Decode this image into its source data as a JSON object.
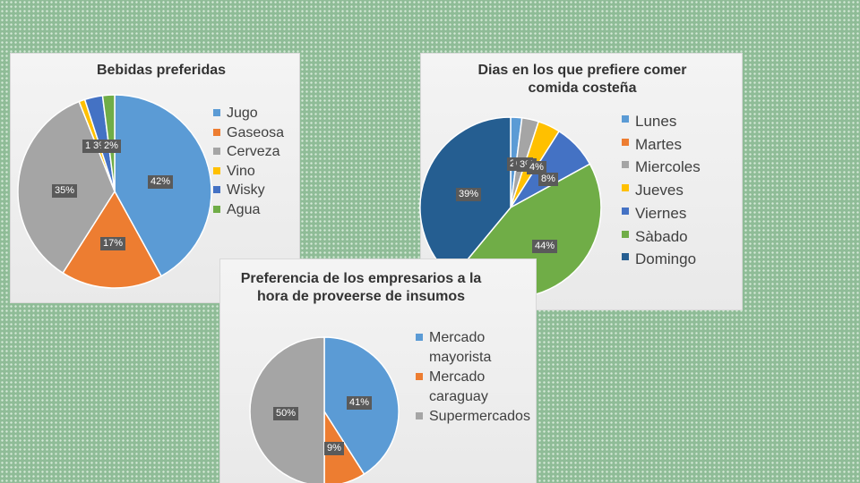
{
  "chart_data": [
    {
      "type": "pie",
      "title": "Bebidas preferidas",
      "categories": [
        "Jugo",
        "Gaseosa",
        "Cerveza",
        "Vino",
        "Wisky",
        "Agua"
      ],
      "values": [
        42,
        17,
        35,
        1,
        3,
        2
      ],
      "data_labels": [
        "42%",
        "17%",
        "35%",
        "1%",
        "3%",
        "2%"
      ],
      "colors": [
        "#5b9bd5",
        "#ed7d31",
        "#a5a5a5",
        "#ffc000",
        "#4472c4",
        "#70ad47"
      ],
      "legend": "right"
    },
    {
      "type": "pie",
      "title": "Dias en  los que prefiere comer comida costeña",
      "categories": [
        "Lunes",
        "Martes",
        "Miercoles",
        "Jueves",
        "Viernes",
        "Sàbado",
        "Domingo"
      ],
      "values": [
        2,
        0,
        3,
        4,
        8,
        44,
        39
      ],
      "data_labels": [
        "2%",
        "0%",
        "3%",
        "4%",
        "8%",
        "44%",
        "39%"
      ],
      "colors": [
        "#5b9bd5",
        "#ed7d31",
        "#a5a5a5",
        "#ffc000",
        "#4472c4",
        "#70ad47",
        "#255e91"
      ],
      "legend": "right"
    },
    {
      "type": "pie",
      "title": "Preferencia de los empresarios a la hora de proveerse de insumos",
      "categories": [
        "Mercado mayorista",
        "Mercado caraguay",
        "Supermercados"
      ],
      "values": [
        41,
        9,
        50
      ],
      "data_labels": [
        "41%",
        "9%",
        "50%"
      ],
      "colors": [
        "#5b9bd5",
        "#ed7d31",
        "#a5a5a5"
      ],
      "legend": "right"
    }
  ]
}
